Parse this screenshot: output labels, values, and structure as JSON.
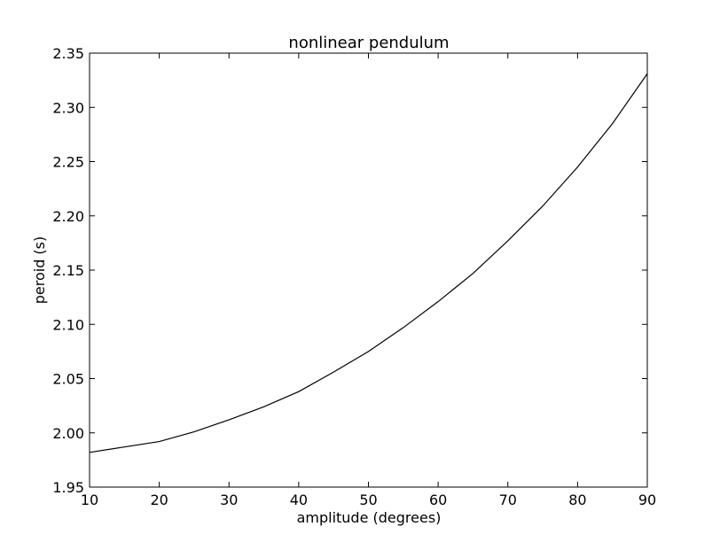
{
  "chart_data": {
    "type": "line",
    "title": "nonlinear pendulum",
    "xlabel": "amplitude (degrees)",
    "ylabel": "peroid (s)",
    "xlim": [
      10,
      90
    ],
    "ylim": [
      1.95,
      2.35
    ],
    "xticks": [
      10,
      20,
      30,
      40,
      50,
      60,
      70,
      80,
      90
    ],
    "yticks": [
      1.95,
      2.0,
      2.05,
      2.1,
      2.15,
      2.2,
      2.25,
      2.3,
      2.35
    ],
    "grid": false,
    "series": [
      {
        "color": "#000000",
        "x": [
          10,
          15,
          20,
          25,
          30,
          35,
          40,
          45,
          50,
          55,
          60,
          65,
          70,
          75,
          80,
          85,
          90
        ],
        "y": [
          1.982,
          1.987,
          1.992,
          2.001,
          2.012,
          2.024,
          2.038,
          2.056,
          2.075,
          2.097,
          2.121,
          2.147,
          2.177,
          2.209,
          2.245,
          2.285,
          2.331
        ]
      }
    ]
  }
}
